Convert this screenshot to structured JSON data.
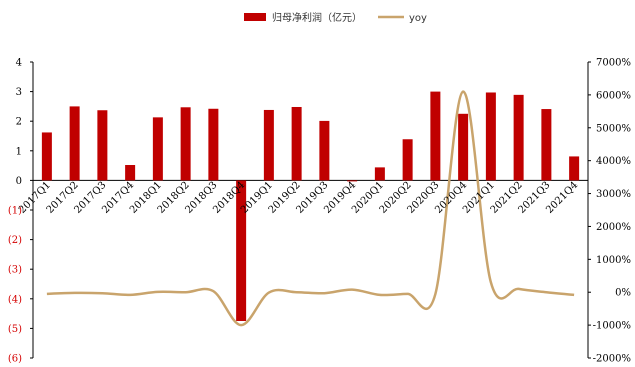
{
  "chart_data": {
    "type": "bar",
    "categories": [
      "2017Q1",
      "2017Q2",
      "2017Q3",
      "2017Q4",
      "2018Q1",
      "2018Q2",
      "2018Q3",
      "2018Q4",
      "2019Q1",
      "2019Q2",
      "2019Q3",
      "2019Q4",
      "2020Q1",
      "2020Q2",
      "2020Q3",
      "2020Q4",
      "2021Q1",
      "2021Q2",
      "2021Q3",
      "2021Q4"
    ],
    "series": [
      {
        "name": "归母净利润（亿元）",
        "type": "bar",
        "axis": "left",
        "color": "#c00000",
        "values": [
          1.62,
          2.5,
          2.37,
          0.52,
          2.13,
          2.47,
          2.42,
          -4.75,
          2.38,
          2.48,
          2.01,
          -0.03,
          0.44,
          1.39,
          3.0,
          2.25,
          2.97,
          2.89,
          2.41,
          0.81
        ]
      },
      {
        "name": "yoy",
        "type": "line",
        "axis": "right",
        "color": "#c9a46c",
        "values": [
          -50,
          -20,
          -30,
          -80,
          10,
          0,
          30,
          -1000,
          -10,
          0,
          -30,
          80,
          -80,
          -50,
          -50,
          6100,
          300,
          100,
          0,
          -80
        ]
      }
    ],
    "yleft": {
      "ylim": [
        -6,
        4
      ],
      "ticks": [
        4,
        3,
        2,
        1,
        0,
        -1,
        -2,
        -3,
        -4,
        -5,
        -6
      ],
      "tick_labels": [
        "4",
        "3",
        "2",
        "1",
        "0",
        "(1)",
        "(2)",
        "(3)",
        "(4)",
        "(5)",
        "(6)"
      ]
    },
    "yright": {
      "ylim": [
        -2000,
        7000
      ],
      "ticks": [
        7000,
        6000,
        5000,
        4000,
        3000,
        2000,
        1000,
        0,
        -1000,
        -2000
      ],
      "tick_labels": [
        "7000%",
        "6000%",
        "5000%",
        "4000%",
        "3000%",
        "2000%",
        "1000%",
        "0%",
        "-1000%",
        "-2000%"
      ]
    },
    "legend": {
      "position": "top-center"
    },
    "grid": false
  }
}
